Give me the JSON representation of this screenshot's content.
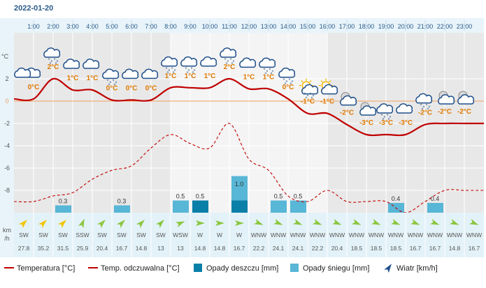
{
  "chart_data": {
    "type": "line",
    "date": "2022-01-20",
    "hours": [
      "1:00",
      "2:00",
      "3:00",
      "4:00",
      "5:00",
      "6:00",
      "7:00",
      "8:00",
      "9:00",
      "10:00",
      "11:00",
      "12:00",
      "13:00",
      "14:00",
      "15:00",
      "16:00",
      "17:00",
      "18:00",
      "19:00",
      "20:00",
      "21:00",
      "22:00",
      "23:00"
    ],
    "temp_axis_unit": "°C",
    "y_ticks": [
      2,
      0,
      -2,
      -4,
      -6,
      -8
    ],
    "ylim": [
      -10,
      4
    ],
    "temperature": [
      0.2,
      2,
      1,
      1,
      0.1,
      0.1,
      0.1,
      1.2,
      1.2,
      1.2,
      2,
      1.1,
      1.1,
      0.2,
      -1.1,
      -1.1,
      -2.1,
      -3,
      -3,
      -3,
      -2.1,
      -2,
      -2
    ],
    "temp_labels": [
      "0°C",
      "2°C",
      "1°C",
      "1°C",
      "0°C",
      "0°C",
      "0°C",
      "1°C",
      "1°C",
      "1°C",
      "2°C",
      "1°C",
      "1°C",
      "0°C",
      "-1°C",
      "-1°C",
      "-2°C",
      "-3°C",
      "-3°C",
      "-3°C",
      "-2°C",
      "-2°C",
      "-2°C"
    ],
    "feels_like": [
      -9,
      -8.5,
      -8.2,
      -7,
      -6.2,
      -5.8,
      -4.2,
      -3,
      -3.8,
      -4.2,
      -2,
      -5.2,
      -6.2,
      -8.5,
      -9,
      -8,
      -9,
      -9,
      -9,
      -10,
      -9,
      -8,
      -8
    ],
    "snow": [
      0,
      0,
      0.3,
      0,
      0,
      0.3,
      0,
      0,
      0.5,
      0,
      0,
      1.0,
      0,
      0.5,
      0.5,
      0,
      0,
      0,
      0,
      0.4,
      0,
      0.4,
      0,
      0
    ],
    "rain": [
      0,
      0,
      0,
      0,
      0,
      0,
      0,
      0,
      0,
      0.5,
      0,
      0.5,
      0,
      0,
      0,
      0,
      0,
      0,
      0,
      0,
      0,
      0,
      0,
      0
    ],
    "precip_labels": [
      "",
      "",
      "0.3",
      "",
      "",
      "0.3",
      "",
      "",
      "0.5",
      "0.5",
      "",
      "1.0",
      "",
      "0.5",
      "0.5",
      "",
      "",
      "",
      "",
      "0.4",
      "",
      "0.4",
      "",
      ""
    ],
    "icons": [
      "cloud",
      "cloud",
      "snow-cloud",
      "cloud",
      "cloud",
      "snow-cloud",
      "cloud",
      "cloud",
      "snow-cloud",
      "snow-cloud",
      "cloud",
      "snow-cloud",
      "cloud",
      "snow-cloud",
      "snow-cloud",
      "partly-sunny",
      "sunny-cloud",
      "moon-cloud",
      "moon-cloud",
      "snow-cloud",
      "cloud",
      "snow-cloud",
      "moon-cloud",
      "moon-cloud"
    ],
    "wind_dir": [
      "SW",
      "SW",
      "SW",
      "SSW",
      "SW",
      "SW",
      "SW",
      "SW",
      "WSW",
      "W",
      "W",
      "W",
      "WNW",
      "WNW",
      "WNW",
      "WNW",
      "WNW",
      "WNW",
      "WNW",
      "WNW",
      "WNW",
      "WNW",
      "WNW",
      "WNW"
    ],
    "wind_speed": [
      "27.8",
      "35.2",
      "31.5",
      "25.9",
      "20.4",
      "16.7",
      "14.8",
      "13",
      "13",
      "14.8",
      "14.8",
      "16.7",
      "22.2",
      "24.1",
      "24.1",
      "22.2",
      "20.4",
      "18.5",
      "18.5",
      "18.5",
      "16.7",
      "16.7",
      "14.8",
      "16.7"
    ],
    "wind_unit": [
      "km",
      "/h"
    ],
    "legend": [
      {
        "key": "temp",
        "label": "Temperatura [°C]"
      },
      {
        "key": "feels",
        "label": "Temp. odczuwalna [°C]"
      },
      {
        "key": "rain",
        "label": "Opady deszczu [mm]"
      },
      {
        "key": "snow",
        "label": "Opady śniegu [mm]"
      },
      {
        "key": "wind",
        "label": "Wiatr [km/h]"
      }
    ],
    "colors": {
      "temp": "#c00000",
      "feels": "#c00000",
      "rain": "#0a7fa8",
      "snow": "#58b6d6",
      "zero_line": "#f0a060",
      "label": "#e07a00",
      "grid": "#ffffff",
      "band_dark": "#e8e8e8",
      "band_light": "#f4f4f4",
      "header": "#e8f4fa",
      "wind_row": "#e3f2f8",
      "wind_arrow": "#8cc63f",
      "wind_arrow_strong": "#f2c500"
    }
  }
}
